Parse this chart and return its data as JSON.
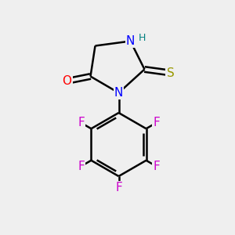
{
  "background_color": "#efefef",
  "atom_colors": {
    "N": "#0000ff",
    "O": "#ff0000",
    "S": "#999900",
    "F": "#cc00cc",
    "H": "#008080",
    "C": "#000000"
  },
  "bond_color": "#000000",
  "bond_width": 1.8,
  "font_size_atoms": 11,
  "font_size_H": 9,
  "figsize": [
    3.0,
    3.0
  ],
  "dpi": 100
}
